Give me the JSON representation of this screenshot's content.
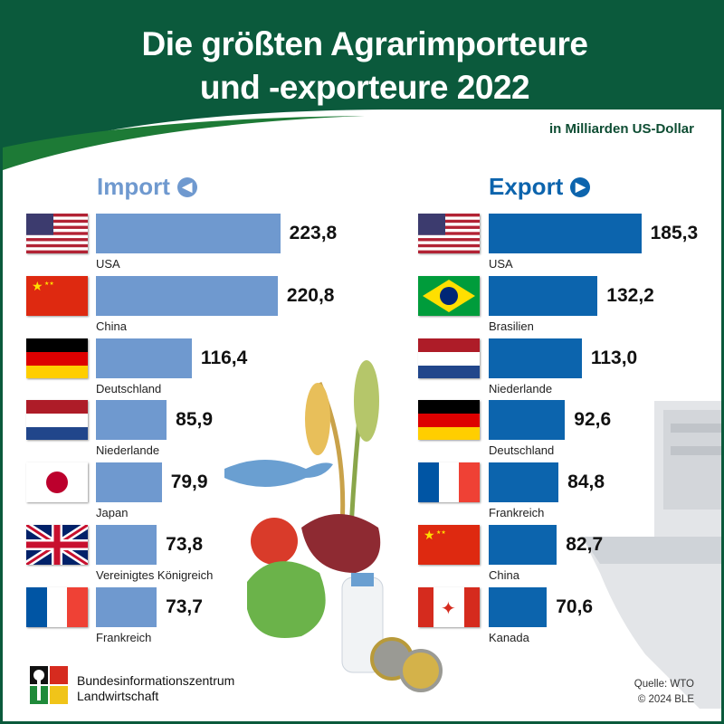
{
  "title_line1": "Die größten Agrarimporteure",
  "title_line2": "und -exporteure 2022",
  "unit": "in Milliarden US-Dollar",
  "colors": {
    "green": "#0b5a3c",
    "import": "#6f99cf",
    "export": "#0c64ad"
  },
  "chart_data": {
    "type": "bar",
    "title": "Die größten Agrarimporteure und -exporteure 2022",
    "ylabel": "in Milliarden US-Dollar",
    "series": [
      {
        "name": "Import",
        "categories": [
          "USA",
          "China",
          "Deutschland",
          "Niederlande",
          "Japan",
          "Vereinigtes Königreich",
          "Frankreich"
        ],
        "values": [
          223.8,
          220.8,
          116.4,
          85.9,
          79.9,
          73.8,
          73.7
        ],
        "labels": [
          "223,8",
          "220,8",
          "116,4",
          "85,9",
          "79,9",
          "73,8",
          "73,7"
        ],
        "flags": [
          "us",
          "cn",
          "de",
          "nl",
          "jp",
          "gb",
          "fr"
        ]
      },
      {
        "name": "Export",
        "categories": [
          "USA",
          "Brasilien",
          "Niederlande",
          "Deutschland",
          "Frankreich",
          "China",
          "Kanada"
        ],
        "values": [
          185.3,
          132.2,
          113.0,
          92.6,
          84.8,
          82.7,
          70.6
        ],
        "labels": [
          "185,3",
          "132,2",
          "113,0",
          "92,6",
          "84,8",
          "82,7",
          "70,6"
        ],
        "flags": [
          "us",
          "br",
          "nl",
          "de",
          "fr",
          "cn",
          "ca"
        ]
      }
    ]
  },
  "logo": {
    "line1": "Bundesinformationszentrum",
    "line2": "Landwirtschaft"
  },
  "source": {
    "line1": "Quelle: WTO",
    "line2": "© 2024 BLE"
  }
}
